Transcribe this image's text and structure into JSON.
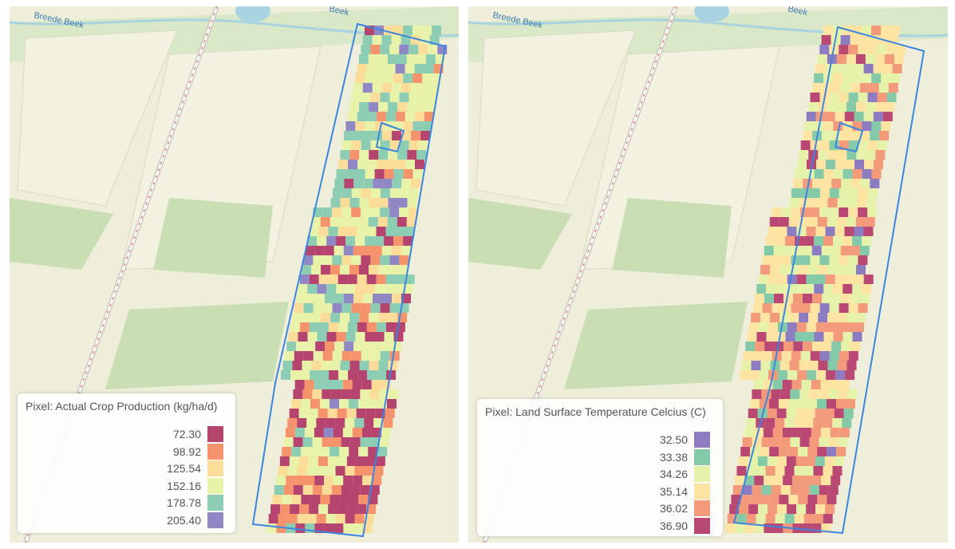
{
  "panels": [
    {
      "river_label": "Breede Beek",
      "top_label": "Beek",
      "legend": {
        "title": "Pixel: Actual Crop Production (kg/ha/d)",
        "items": [
          {
            "label": "72.30",
            "color": "#b5446e"
          },
          {
            "label": "98.92",
            "color": "#f4936c"
          },
          {
            "label": "125.54",
            "color": "#fbdc98"
          },
          {
            "label": "152.16",
            "color": "#e8f2a8"
          },
          {
            "label": "178.78",
            "color": "#8ccdb4"
          },
          {
            "label": "205.40",
            "color": "#9088c4"
          }
        ]
      }
    },
    {
      "river_label": "Breede Beek",
      "top_label": "Beek",
      "legend": {
        "title": "Pixel: Land Surface Temperature Celcius (C)",
        "items": [
          {
            "label": "32.50",
            "color": "#8e7cc3"
          },
          {
            "label": "33.38",
            "color": "#84c9a8"
          },
          {
            "label": "34.26",
            "color": "#e6f2a9"
          },
          {
            "label": "35.14",
            "color": "#fde4a2"
          },
          {
            "label": "36.02",
            "color": "#f39a7a"
          },
          {
            "label": "36.90",
            "color": "#b94872"
          }
        ]
      }
    }
  ]
}
